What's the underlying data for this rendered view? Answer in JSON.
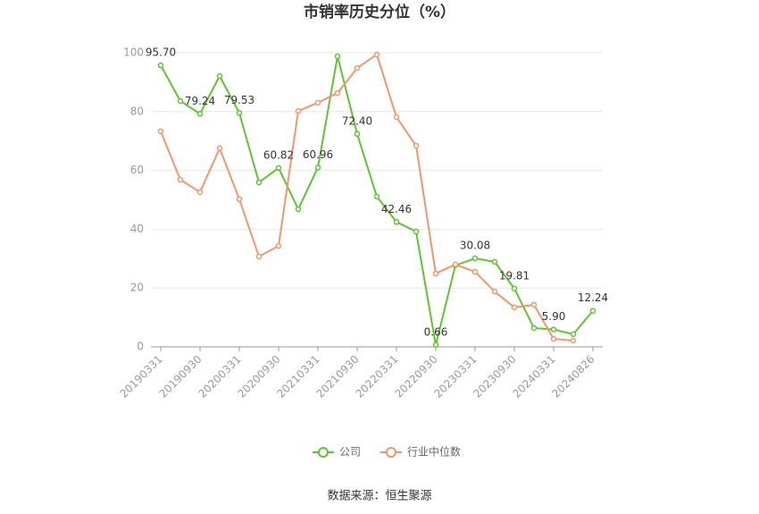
{
  "chart_data": {
    "type": "line",
    "title": "市销率历史分位（%）",
    "source": "数据来源：恒生聚源",
    "categories": [
      "20190331",
      null,
      "20190930",
      null,
      "20200331",
      null,
      "20200930",
      null,
      "20210331",
      null,
      "20210930",
      null,
      "20220331",
      null,
      "20220930",
      null,
      "20230331",
      null,
      "20230930",
      null,
      "20240331",
      null,
      "20240826"
    ],
    "series": [
      {
        "name": "公司",
        "color": "#5cc72c",
        "values": [
          95.7,
          83.6,
          79.24,
          92.1,
          79.53,
          55.9,
          60.82,
          46.8,
          60.96,
          98.8,
          72.4,
          51.1,
          42.46,
          39.2,
          0.66,
          27.7,
          30.08,
          28.9,
          19.81,
          6.4,
          5.9,
          4.3,
          12.24
        ],
        "value_labels": [
          "95.70",
          null,
          "79.24",
          null,
          "79.53",
          null,
          "60.82",
          null,
          "60.96",
          null,
          "72.40",
          null,
          "42.46",
          null,
          "0.66",
          null,
          "30.08",
          null,
          "19.81",
          null,
          "5.90",
          null,
          "12.24"
        ]
      },
      {
        "name": "行业中位数",
        "color": "#f4956a",
        "values": [
          73.3,
          56.8,
          52.6,
          67.5,
          50.2,
          30.7,
          34.3,
          80.2,
          83.0,
          86.3,
          94.8,
          99.4,
          78.1,
          68.4,
          24.9,
          28.0,
          25.5,
          18.8,
          13.4,
          14.3,
          2.7,
          2.1,
          null
        ]
      }
    ],
    "ylim": [
      0,
      100
    ],
    "yticks": [
      0,
      20,
      40,
      60,
      80,
      100
    ],
    "grid": true,
    "legend": "bottom"
  }
}
